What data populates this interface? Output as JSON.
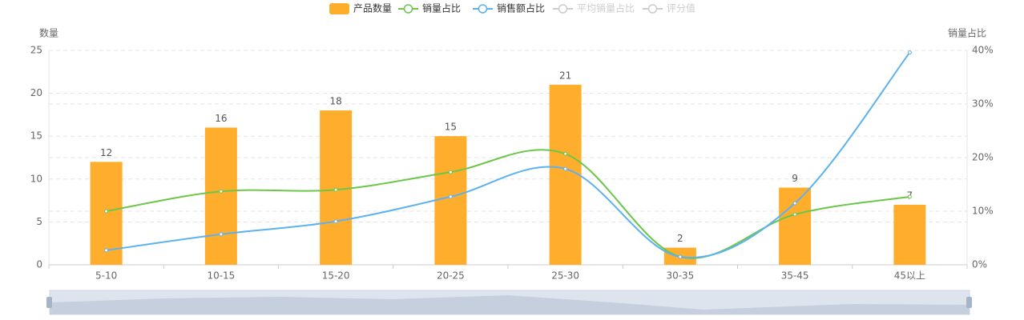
{
  "chart_data": {
    "type": "bar",
    "y_label": "数量",
    "y2_label": "销量占比",
    "categories": [
      "5-10",
      "10-15",
      "15-20",
      "20-25",
      "25-30",
      "30-35",
      "35-45",
      "45以上"
    ],
    "series": [
      {
        "name": "产品数量",
        "type": "bar",
        "color": "#ffad2d",
        "values": [
          12,
          16,
          18,
          15,
          21,
          2,
          9,
          7
        ]
      },
      {
        "name": "销量占比",
        "type": "line",
        "axis": "y2",
        "color": "#6cc64a",
        "values": [
          10.0,
          13.7,
          14.0,
          17.3,
          20.7,
          1.5,
          9.4,
          12.7
        ]
      },
      {
        "name": "销售额占比",
        "type": "line",
        "axis": "y2",
        "color": "#5cb1ef",
        "values": [
          2.7,
          5.7,
          8.1,
          12.7,
          17.9,
          1.5,
          11.5,
          39.6
        ]
      },
      {
        "name": "平均销量占比",
        "type": "line",
        "visible": false,
        "color": "#cccccc"
      },
      {
        "name": "评分值",
        "type": "line",
        "visible": false,
        "color": "#cccccc"
      }
    ],
    "ylim": [
      0,
      25
    ],
    "yticks": [
      0,
      5,
      10,
      15,
      20,
      25
    ],
    "y2lim": [
      0,
      40
    ],
    "y2ticks": [
      {
        "value": 0,
        "label": "0%"
      },
      {
        "value": 10,
        "label": "10%"
      },
      {
        "value": 20,
        "label": "20%"
      },
      {
        "value": 30,
        "label": "30%"
      },
      {
        "value": 40,
        "label": "40%"
      }
    ],
    "grid": true
  }
}
